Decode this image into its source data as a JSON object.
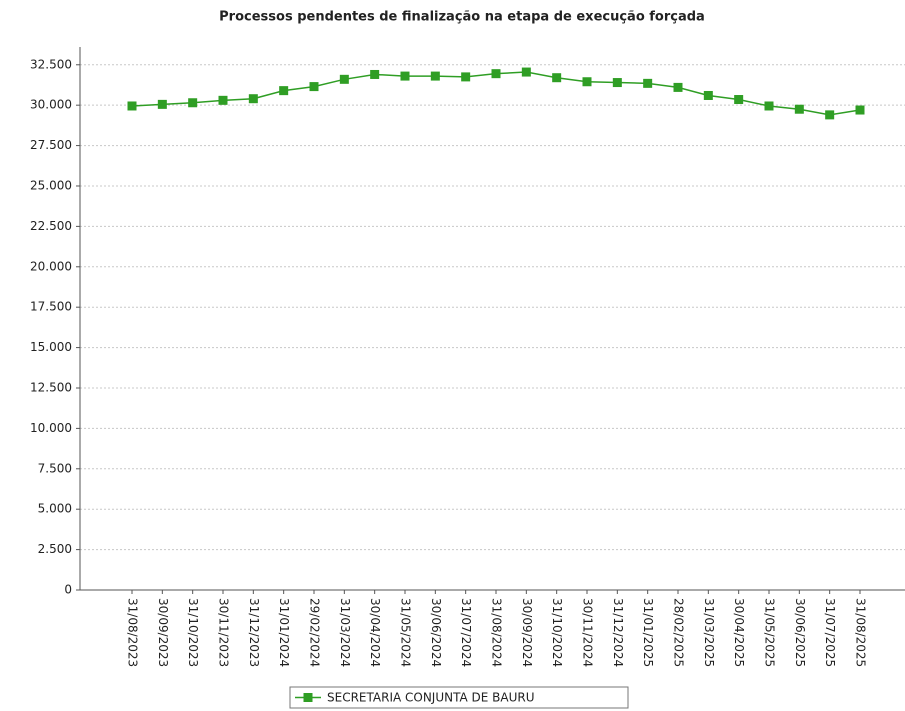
{
  "chart_data": {
    "type": "line",
    "title": "Processos pendentes de finalização na etapa de execução forçada",
    "categories": [
      "31/08/2023",
      "30/09/2023",
      "31/10/2023",
      "30/11/2023",
      "31/12/2023",
      "31/01/2024",
      "29/02/2024",
      "31/03/2024",
      "30/04/2024",
      "31/05/2024",
      "30/06/2024",
      "31/07/2024",
      "31/08/2024",
      "30/09/2024",
      "31/10/2024",
      "30/11/2024",
      "31/12/2024",
      "31/01/2025",
      "28/02/2025",
      "31/03/2025",
      "30/04/2025",
      "31/05/2025",
      "30/06/2025",
      "31/07/2025",
      "31/08/2025"
    ],
    "series": [
      {
        "name": "SECRETARIA CONJUNTA DE BAURU",
        "color": "#2f9e24",
        "values": [
          29950,
          30050,
          30150,
          30300,
          30400,
          30900,
          31150,
          31600,
          31900,
          31800,
          31800,
          31750,
          31950,
          32050,
          31700,
          31450,
          31400,
          31350,
          31100,
          30600,
          30350,
          29950,
          29750,
          29400,
          29700
        ]
      }
    ],
    "ylim": [
      0,
      33600
    ],
    "yticks": [
      0,
      {
        "value": 2500,
        "label": "2.500"
      },
      {
        "value": 5000,
        "label": "5.000"
      },
      {
        "value": 7500,
        "label": "7.500"
      },
      {
        "value": 10000,
        "label": "10.000"
      },
      {
        "value": 12500,
        "label": "12.500"
      },
      {
        "value": 15000,
        "label": "15.000"
      },
      {
        "value": 17500,
        "label": "17.500"
      },
      {
        "value": 20000,
        "label": "20.000"
      },
      {
        "value": 22500,
        "label": "22.500"
      },
      {
        "value": 25000,
        "label": "25.000"
      },
      {
        "value": 27500,
        "label": "27.500"
      },
      {
        "value": 30000,
        "label": "30.000"
      },
      {
        "value": 32500,
        "label": "32.500"
      }
    ],
    "grid": true
  }
}
